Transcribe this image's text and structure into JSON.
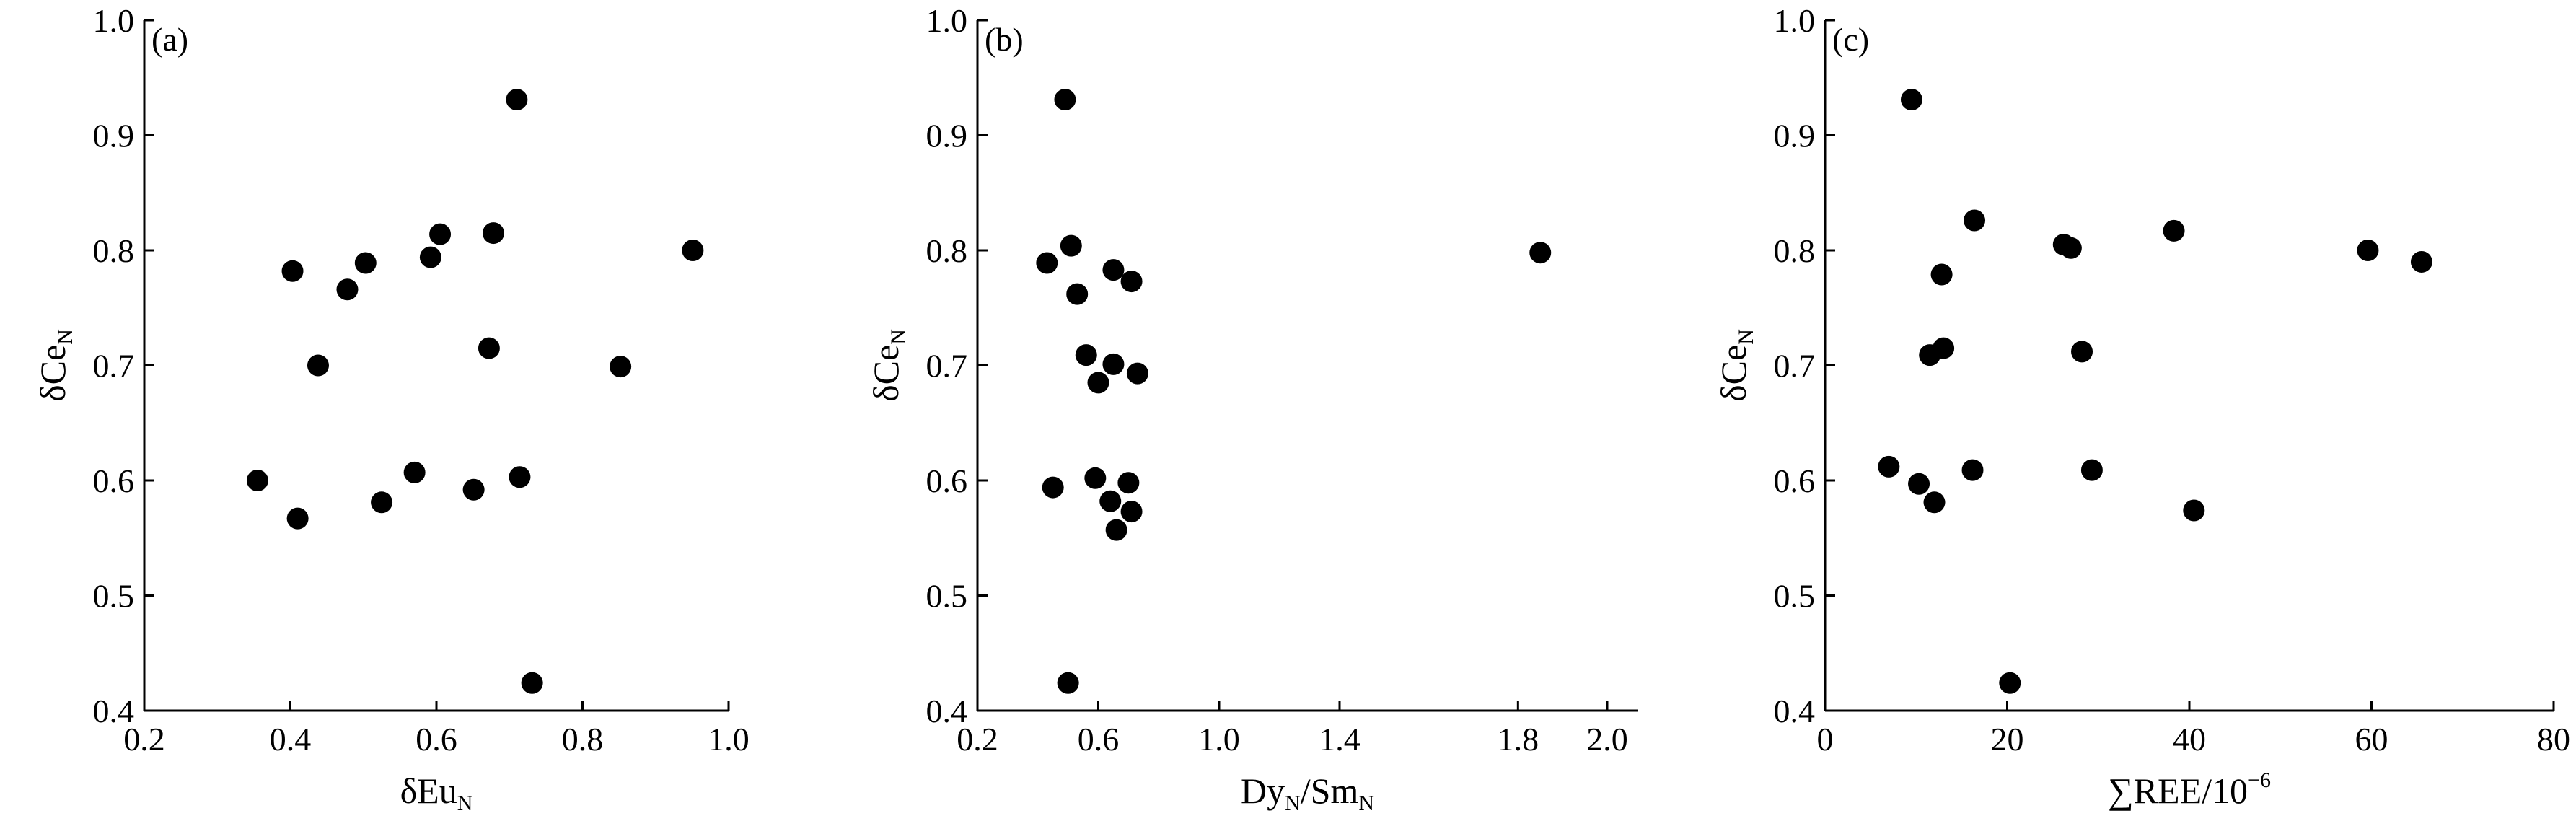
{
  "chart_data": [
    {
      "type": "scatter",
      "panel": "(a)",
      "xlabel": {
        "main": "δEu",
        "sub": "N"
      },
      "ylabel": {
        "main": "δCe",
        "sub": "N"
      },
      "xlim": [
        0.2,
        1.0
      ],
      "ylim": [
        0.4,
        1.0
      ],
      "xticks": [
        "0.2",
        "0.4",
        "0.6",
        "0.8",
        "1.0"
      ],
      "yticks": [
        "0.4",
        "0.5",
        "0.6",
        "0.7",
        "0.8",
        "0.9",
        "1.0"
      ],
      "grid": false,
      "marker_color": "#000000",
      "points": [
        {
          "x": 0.355,
          "y": 0.6
        },
        {
          "x": 0.403,
          "y": 0.782
        },
        {
          "x": 0.41,
          "y": 0.567
        },
        {
          "x": 0.438,
          "y": 0.7
        },
        {
          "x": 0.478,
          "y": 0.766
        },
        {
          "x": 0.503,
          "y": 0.789
        },
        {
          "x": 0.525,
          "y": 0.581
        },
        {
          "x": 0.57,
          "y": 0.607
        },
        {
          "x": 0.592,
          "y": 0.794
        },
        {
          "x": 0.605,
          "y": 0.814
        },
        {
          "x": 0.651,
          "y": 0.592
        },
        {
          "x": 0.672,
          "y": 0.715
        },
        {
          "x": 0.678,
          "y": 0.815
        },
        {
          "x": 0.71,
          "y": 0.931
        },
        {
          "x": 0.714,
          "y": 0.603
        },
        {
          "x": 0.731,
          "y": 0.424
        },
        {
          "x": 0.852,
          "y": 0.699
        },
        {
          "x": 0.951,
          "y": 0.8
        }
      ]
    },
    {
      "type": "scatter",
      "panel": "(b)",
      "xlabel": {
        "main": "Dy",
        "sub": "N",
        "sep": "/",
        "main2": "Sm",
        "sub2": "N"
      },
      "ylabel": {
        "main": "δCe",
        "sub": "N"
      },
      "xlim": [
        0.2,
        2.1
      ],
      "ylim": [
        0.4,
        1.0
      ],
      "xticks": [
        "0.2",
        "0.6",
        "1.0",
        "1.4",
        "1.8",
        "2.0"
      ],
      "yticks": [
        "0.4",
        "0.5",
        "0.6",
        "0.7",
        "0.8",
        "0.9",
        "1.0"
      ],
      "grid": false,
      "marker_color": "#000000",
      "points": [
        {
          "x": 0.43,
          "y": 0.789
        },
        {
          "x": 0.45,
          "y": 0.594
        },
        {
          "x": 0.49,
          "y": 0.931
        },
        {
          "x": 0.5,
          "y": 0.424
        },
        {
          "x": 0.51,
          "y": 0.804
        },
        {
          "x": 0.53,
          "y": 0.762
        },
        {
          "x": 0.56,
          "y": 0.709
        },
        {
          "x": 0.59,
          "y": 0.602
        },
        {
          "x": 0.6,
          "y": 0.685
        },
        {
          "x": 0.64,
          "y": 0.582
        },
        {
          "x": 0.65,
          "y": 0.783
        },
        {
          "x": 0.65,
          "y": 0.701
        },
        {
          "x": 0.66,
          "y": 0.557
        },
        {
          "x": 0.7,
          "y": 0.598
        },
        {
          "x": 0.71,
          "y": 0.573
        },
        {
          "x": 0.71,
          "y": 0.773
        },
        {
          "x": 0.73,
          "y": 0.693
        },
        {
          "x": 1.85,
          "y": 0.798
        }
      ]
    },
    {
      "type": "scatter",
      "panel": "(c)",
      "xlabel": {
        "main": "∑REE/10",
        "sup": "−6"
      },
      "ylabel": {
        "main": "δCe",
        "sub": "N"
      },
      "xlim": [
        0,
        80
      ],
      "ylim": [
        0.4,
        1.0
      ],
      "xticks": [
        "0",
        "20",
        "40",
        "60",
        "80"
      ],
      "yticks": [
        "0.4",
        "0.5",
        "0.6",
        "0.7",
        "0.8",
        "0.9",
        "1.0"
      ],
      "grid": false,
      "marker_color": "#000000",
      "points": [
        {
          "x": 7.0,
          "y": 0.612
        },
        {
          "x": 9.5,
          "y": 0.931
        },
        {
          "x": 10.3,
          "y": 0.597
        },
        {
          "x": 11.5,
          "y": 0.709
        },
        {
          "x": 12.0,
          "y": 0.581
        },
        {
          "x": 12.8,
          "y": 0.779
        },
        {
          "x": 13.0,
          "y": 0.715
        },
        {
          "x": 16.2,
          "y": 0.609
        },
        {
          "x": 16.4,
          "y": 0.826
        },
        {
          "x": 20.3,
          "y": 0.424
        },
        {
          "x": 26.2,
          "y": 0.805
        },
        {
          "x": 27.0,
          "y": 0.802
        },
        {
          "x": 28.2,
          "y": 0.712
        },
        {
          "x": 29.3,
          "y": 0.609
        },
        {
          "x": 38.3,
          "y": 0.817
        },
        {
          "x": 40.5,
          "y": 0.574
        },
        {
          "x": 59.6,
          "y": 0.8
        },
        {
          "x": 65.5,
          "y": 0.79
        }
      ]
    }
  ]
}
